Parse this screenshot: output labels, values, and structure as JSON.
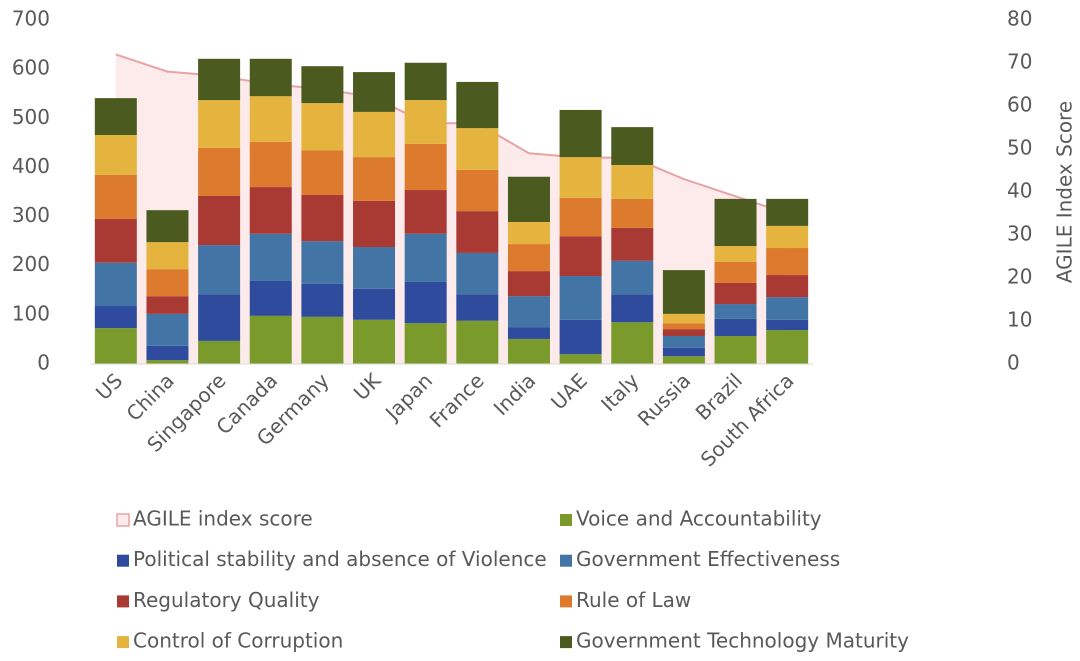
{
  "chart_data": {
    "type": "bar",
    "stacked": true,
    "categories": [
      "US",
      "China",
      "Singapore",
      "Canada",
      "Germany",
      "UK",
      "Japan",
      "France",
      "India",
      "UAE",
      "Italy",
      "Russia",
      "Brazil",
      "South Africa"
    ],
    "series": [
      {
        "name": "AGILE index score",
        "type": "area",
        "axis": "y2",
        "color": "#e8a3a3",
        "fill": "#fdeaea",
        "values": [
          72,
          68,
          67,
          65,
          64,
          62,
          56,
          56,
          49,
          48,
          48,
          43,
          39,
          35
        ]
      },
      {
        "name": "Voice and Accountability",
        "color": "#7b9a2c",
        "values": [
          73,
          8,
          47,
          98,
          96,
          90,
          83,
          88,
          51,
          20,
          85,
          16,
          57,
          69
        ]
      },
      {
        "name": "Political stability and absence of Violence",
        "color": "#2f4b9e",
        "values": [
          45,
          29,
          95,
          71,
          67,
          63,
          84,
          54,
          24,
          70,
          57,
          17,
          35,
          21
        ]
      },
      {
        "name": "Government Effectiveness",
        "color": "#4274a5",
        "values": [
          88,
          65,
          100,
          96,
          87,
          85,
          98,
          84,
          63,
          89,
          68,
          24,
          30,
          46
        ]
      },
      {
        "name": "Regulatory Quality",
        "color": "#a93a33",
        "values": [
          89,
          36,
          100,
          95,
          94,
          94,
          89,
          85,
          51,
          81,
          67,
          14,
          43,
          45
        ]
      },
      {
        "name": "Rule of Law",
        "color": "#dc7b2d",
        "values": [
          90,
          55,
          98,
          92,
          91,
          89,
          94,
          84,
          55,
          78,
          59,
          12,
          43,
          55
        ]
      },
      {
        "name": "Control of Corruption",
        "color": "#e4b43f",
        "values": [
          81,
          55,
          97,
          93,
          96,
          92,
          89,
          85,
          45,
          83,
          69,
          19,
          32,
          45
        ]
      },
      {
        "name": "Government Technology Maturity",
        "color": "#4b5a1e",
        "values": [
          75,
          65,
          84,
          76,
          75,
          81,
          76,
          94,
          92,
          96,
          77,
          89,
          96,
          55
        ]
      }
    ],
    "ylim": [
      0,
      700
    ],
    "yticks": [
      0,
      100,
      200,
      300,
      400,
      500,
      600,
      700
    ],
    "y2lim": [
      0,
      80
    ],
    "y2ticks": [
      0,
      10,
      20,
      30,
      40,
      50,
      60,
      70,
      80
    ],
    "y2label": "AGILE Index Score",
    "grid": false,
    "legend": "bottom"
  }
}
